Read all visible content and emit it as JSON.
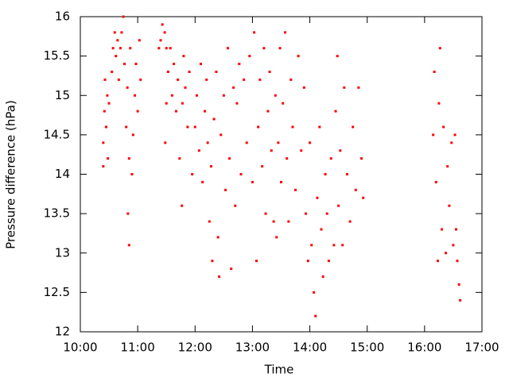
{
  "chart_data": {
    "type": "scatter",
    "xlabel": "Time",
    "ylabel": "Pressure difference (hPa)",
    "xlim": [
      10,
      17
    ],
    "xticks": [
      {
        "value": 10,
        "label": "10:00"
      },
      {
        "value": 11,
        "label": "11:00"
      },
      {
        "value": 12,
        "label": "12:00"
      },
      {
        "value": 13,
        "label": "13:00"
      },
      {
        "value": 14,
        "label": "14:00"
      },
      {
        "value": 15,
        "label": "15:00"
      },
      {
        "value": 16,
        "label": "16:00"
      },
      {
        "value": 17,
        "label": "17:00"
      }
    ],
    "ylim": [
      12,
      16
    ],
    "yticks": [
      12,
      12.5,
      13,
      13.5,
      14,
      14.5,
      15,
      15.5,
      16
    ],
    "x": [
      10.4,
      10.4,
      10.42,
      10.43,
      10.45,
      10.47,
      10.48,
      10.5,
      10.55,
      10.57,
      10.6,
      10.62,
      10.65,
      10.67,
      10.7,
      10.72,
      10.75,
      10.77,
      10.8,
      10.82,
      10.83,
      10.85,
      10.85,
      10.87,
      10.9,
      10.92,
      10.95,
      10.97,
      11.0,
      11.03,
      11.05,
      11.37,
      11.4,
      11.43,
      11.47,
      11.5,
      11.48,
      11.5,
      11.53,
      11.57,
      11.6,
      11.63,
      11.67,
      11.7,
      11.73,
      11.77,
      11.78,
      11.8,
      11.83,
      11.87,
      11.9,
      11.95,
      12.0,
      12.03,
      12.07,
      12.1,
      12.13,
      12.17,
      12.2,
      12.22,
      12.25,
      12.28,
      12.3,
      12.33,
      12.37,
      12.4,
      12.42,
      12.45,
      12.5,
      12.53,
      12.57,
      12.6,
      12.63,
      12.67,
      12.7,
      12.73,
      12.77,
      12.8,
      12.85,
      12.9,
      12.95,
      13.0,
      13.03,
      13.07,
      13.1,
      13.13,
      13.17,
      13.2,
      13.23,
      13.27,
      13.3,
      13.33,
      13.37,
      13.4,
      13.42,
      13.45,
      13.48,
      13.5,
      13.53,
      13.57,
      13.6,
      13.63,
      13.67,
      13.7,
      13.75,
      13.8,
      13.85,
      13.9,
      13.93,
      13.97,
      14.0,
      14.03,
      14.07,
      14.1,
      14.13,
      14.17,
      14.2,
      14.23,
      14.27,
      14.3,
      14.33,
      14.37,
      14.42,
      14.45,
      14.48,
      14.5,
      14.53,
      14.57,
      14.6,
      14.65,
      14.7,
      14.75,
      14.8,
      14.85,
      14.9,
      14.93,
      16.15,
      16.17,
      16.2,
      16.23,
      16.25,
      16.27,
      16.3,
      16.33,
      16.37,
      16.4,
      16.43,
      16.47,
      16.5,
      16.53,
      16.55,
      16.57,
      16.6,
      16.62
    ],
    "series": [
      {
        "color": "#ff0000",
        "values": [
          14.1,
          14.4,
          14.8,
          15.2,
          14.6,
          15.0,
          14.2,
          14.9,
          15.3,
          15.6,
          15.8,
          15.5,
          15.7,
          15.2,
          15.6,
          15.8,
          16.0,
          15.4,
          14.6,
          15.1,
          13.5,
          13.1,
          14.2,
          15.6,
          14.0,
          14.5,
          15.0,
          15.4,
          14.8,
          15.7,
          15.2,
          15.6,
          15.7,
          15.9,
          15.8,
          15.6,
          14.4,
          14.9,
          15.3,
          15.6,
          15.0,
          15.4,
          14.8,
          15.2,
          14.2,
          13.6,
          14.9,
          15.5,
          15.1,
          14.6,
          15.3,
          14.0,
          14.6,
          15.0,
          14.3,
          15.4,
          13.9,
          14.8,
          15.2,
          14.4,
          13.4,
          14.1,
          12.9,
          14.7,
          15.3,
          13.2,
          12.7,
          14.5,
          15.0,
          13.8,
          15.6,
          14.2,
          12.8,
          15.1,
          13.6,
          14.9,
          15.4,
          14.0,
          15.2,
          14.4,
          15.5,
          13.9,
          15.8,
          12.9,
          14.6,
          15.2,
          14.1,
          15.6,
          13.5,
          14.8,
          15.3,
          14.3,
          13.4,
          15.0,
          13.2,
          14.4,
          15.6,
          13.9,
          14.9,
          15.8,
          14.2,
          13.4,
          15.2,
          14.6,
          13.8,
          15.5,
          14.3,
          15.1,
          13.5,
          12.9,
          14.4,
          13.1,
          12.5,
          12.2,
          13.7,
          14.6,
          13.3,
          12.7,
          14.0,
          13.5,
          12.9,
          14.2,
          13.1,
          14.8,
          15.5,
          13.6,
          14.3,
          13.1,
          15.1,
          14.0,
          13.4,
          14.6,
          13.8,
          15.1,
          14.2,
          13.7,
          14.5,
          15.3,
          13.9,
          12.9,
          14.9,
          15.6,
          13.3,
          14.6,
          13.0,
          14.1,
          13.6,
          14.4,
          13.1,
          14.5,
          13.3,
          12.9,
          12.6,
          12.4
        ]
      }
    ]
  }
}
